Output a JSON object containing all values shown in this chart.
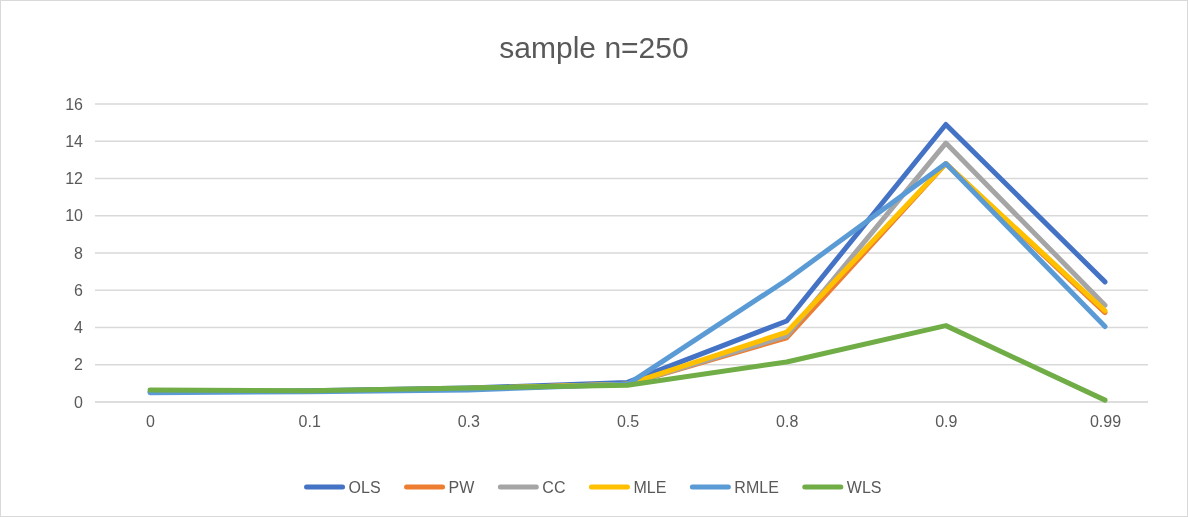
{
  "chart_data": {
    "type": "line",
    "title": "sample n=250",
    "categories": [
      "0",
      "0.1",
      "0.3",
      "0.5",
      "0.8",
      "0.9",
      "0.99"
    ],
    "series": [
      {
        "name": "OLS",
        "color": "#4472c4",
        "values": [
          0.55,
          0.6,
          0.75,
          1.05,
          4.35,
          14.9,
          6.45
        ]
      },
      {
        "name": "PW",
        "color": "#ed7d31",
        "values": [
          null,
          null,
          0.72,
          0.95,
          3.45,
          12.8,
          4.8
        ]
      },
      {
        "name": "CC",
        "color": "#a5a5a5",
        "values": [
          null,
          null,
          0.72,
          0.95,
          3.55,
          13.9,
          5.2
        ]
      },
      {
        "name": "MLE",
        "color": "#ffc000",
        "values": [
          null,
          null,
          0.72,
          0.95,
          3.75,
          12.8,
          4.9
        ]
      },
      {
        "name": "RMLE",
        "color": "#5b9bd5",
        "values": [
          0.5,
          0.55,
          0.65,
          0.95,
          6.55,
          12.8,
          4.05
        ]
      },
      {
        "name": "WLS",
        "color": "#70ad47",
        "values": [
          0.65,
          0.6,
          0.75,
          0.9,
          2.15,
          4.1,
          0.1
        ]
      }
    ],
    "ylim": [
      0,
      16
    ],
    "yticks": [
      0,
      2,
      4,
      6,
      8,
      10,
      12,
      14,
      16
    ],
    "grid": "y",
    "legend": "bottom",
    "marker": "none",
    "line_style": "solid"
  }
}
